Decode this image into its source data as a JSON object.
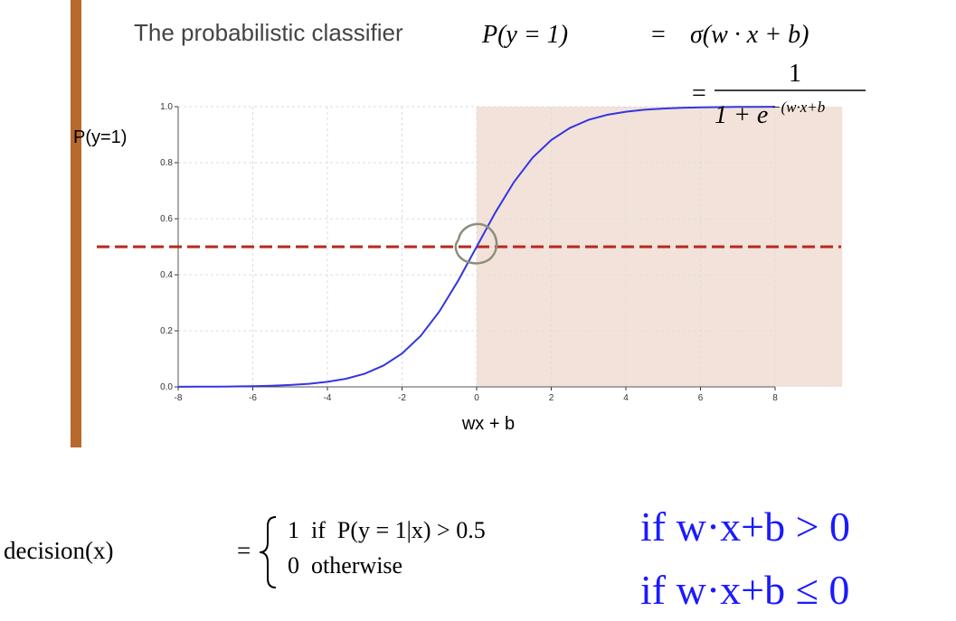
{
  "chart_data": {
    "type": "line",
    "xlabel": "wx + b",
    "ylabel": "P(y=1)",
    "x": [
      -8,
      -7.5,
      -7,
      -6.5,
      -6,
      -5.5,
      -5,
      -4.5,
      -4,
      -3.5,
      -3,
      -2.5,
      -2,
      -1.5,
      -1,
      -0.5,
      0,
      0.5,
      1,
      1.5,
      2,
      2.5,
      3,
      3.5,
      4,
      4.5,
      5,
      5.5,
      6,
      6.5,
      7,
      7.5,
      8
    ],
    "values": [
      0.0003,
      0.0006,
      0.0009,
      0.0015,
      0.0025,
      0.0041,
      0.0067,
      0.011,
      0.018,
      0.029,
      0.047,
      0.076,
      0.119,
      0.182,
      0.269,
      0.378,
      0.5,
      0.622,
      0.731,
      0.818,
      0.881,
      0.924,
      0.953,
      0.971,
      0.982,
      0.989,
      0.9933,
      0.9959,
      0.9975,
      0.9985,
      0.9991,
      0.9994,
      0.9997
    ],
    "color": "#3535e0",
    "xlim": [
      -8,
      8
    ],
    "ylim": [
      0,
      1
    ],
    "xticks": [
      -8,
      -6,
      -4,
      -2,
      0,
      2,
      4,
      6,
      8
    ],
    "yticks": [
      {
        "value": 0,
        "label": "0.0"
      },
      {
        "value": 0.2,
        "label": "0.2"
      },
      {
        "value": 0.4,
        "label": "0.4"
      },
      {
        "value": 0.6,
        "label": "0.6"
      },
      {
        "value": 0.8,
        "label": "0.8"
      },
      {
        "value": 1,
        "label": "1.0"
      }
    ],
    "grid": true,
    "threshold": 0.5,
    "threshold_color": "#b8281e",
    "shade_from": 0,
    "shade_to": 9.8,
    "shade_color": "#f2e2da"
  },
  "slide": {
    "title": "The probabilistic classifier",
    "formula_lhs": "P(y = 1)",
    "formula_eq": "=",
    "formula_rhs": "σ(w · x + b)",
    "fraction_eq": "=",
    "fraction_num": "1",
    "fraction_den": "1 + e",
    "fraction_exp": "−(w·x+b",
    "decision_lhs": "decision(x)",
    "decision_eq": "=",
    "case1": "1  if  P(y = 1|x) > 0.5",
    "case2": "0  otherwise",
    "cond1": "if w·x+b > 0",
    "cond2": "if w·x+b ≤ 0"
  }
}
